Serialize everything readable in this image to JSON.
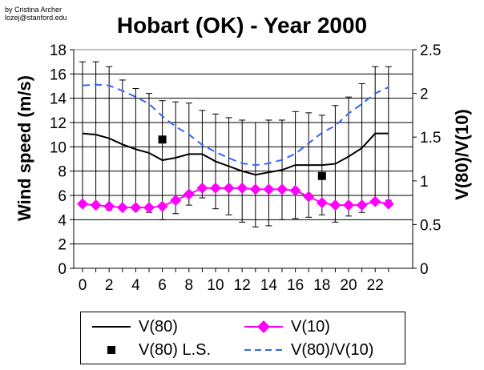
{
  "credit": {
    "line1": "by Cristina Archer",
    "line2": "lozej@stanford.edu"
  },
  "chart_data": {
    "type": "line",
    "title": "Hobart (OK) - Year 2000",
    "xlabel": "",
    "ylabel": "Wind speed (m/s)",
    "y2label": "V(80)/V(10)",
    "x": [
      0,
      1,
      2,
      3,
      4,
      5,
      6,
      7,
      8,
      9,
      10,
      11,
      12,
      13,
      14,
      15,
      16,
      17,
      18,
      19,
      20,
      21,
      22,
      23
    ],
    "x_ticks": [
      "0",
      "2",
      "4",
      "6",
      "8",
      "10",
      "12",
      "14",
      "16",
      "18",
      "20",
      "22"
    ],
    "ylim": [
      0,
      18
    ],
    "y_ticks": [
      "0",
      "2",
      "4",
      "6",
      "8",
      "10",
      "12",
      "14",
      "16",
      "18"
    ],
    "y2lim": [
      0,
      2.5
    ],
    "y2_ticks": [
      "0",
      "0.5",
      "1",
      "1.5",
      "2",
      "2.5"
    ],
    "grid": "horizontal",
    "legend_position": "bottom",
    "series": [
      {
        "name": "V(80)",
        "axis": "left",
        "style": "solid-line",
        "color": "#000000",
        "values": [
          11.1,
          11.0,
          10.7,
          10.2,
          9.8,
          9.5,
          8.9,
          9.1,
          9.4,
          9.4,
          8.8,
          8.4,
          8.0,
          7.7,
          7.9,
          8.1,
          8.5,
          8.5,
          8.5,
          8.6,
          9.2,
          9.9,
          11.1,
          11.1
        ],
        "error_upper": [
          17.0,
          17.0,
          16.6,
          15.5,
          14.8,
          14.4,
          13.8,
          13.7,
          13.6,
          13.0,
          12.7,
          12.4,
          12.2,
          12.0,
          12.2,
          12.2,
          12.9,
          12.8,
          12.6,
          13.4,
          14.1,
          15.2,
          16.6,
          16.6
        ],
        "error_lower": [
          5.2,
          5.0,
          4.8,
          4.9,
          4.8,
          4.6,
          4.0,
          4.5,
          5.2,
          5.8,
          4.9,
          4.4,
          3.8,
          3.4,
          3.5,
          4.0,
          4.1,
          4.2,
          4.4,
          3.8,
          4.3,
          4.6,
          5.6,
          5.6
        ]
      },
      {
        "name": "V(10)",
        "axis": "left",
        "style": "line-diamond",
        "color": "#ff00ff",
        "values": [
          5.3,
          5.2,
          5.1,
          5.0,
          5.0,
          5.0,
          5.1,
          5.6,
          6.1,
          6.6,
          6.6,
          6.6,
          6.6,
          6.5,
          6.5,
          6.5,
          6.4,
          5.9,
          5.4,
          5.2,
          5.2,
          5.2,
          5.5,
          5.3
        ]
      },
      {
        "name": "V(80) L.S.",
        "axis": "left",
        "style": "square-marker",
        "color": "#000000",
        "points": [
          {
            "x": 6,
            "y": 10.6
          },
          {
            "x": 18,
            "y": 7.6
          }
        ]
      },
      {
        "name": "V(80)/V(10)",
        "axis": "right",
        "style": "dashed-line",
        "color": "#3366ff",
        "values": [
          2.09,
          2.1,
          2.09,
          2.03,
          1.96,
          1.88,
          1.74,
          1.62,
          1.53,
          1.41,
          1.33,
          1.26,
          1.2,
          1.18,
          1.2,
          1.24,
          1.31,
          1.43,
          1.55,
          1.63,
          1.77,
          1.88,
          2.0,
          2.07
        ]
      }
    ]
  },
  "legend": {
    "items": [
      {
        "label": "V(80)",
        "symbol": "solid-line",
        "color": "#000000"
      },
      {
        "label": "V(10)",
        "symbol": "line-diamond",
        "color": "#ff00ff"
      },
      {
        "label": "V(80) L.S.",
        "symbol": "square-marker",
        "color": "#000000"
      },
      {
        "label": "V(80)/V(10)",
        "symbol": "dashed-line",
        "color": "#3366ff"
      }
    ]
  }
}
